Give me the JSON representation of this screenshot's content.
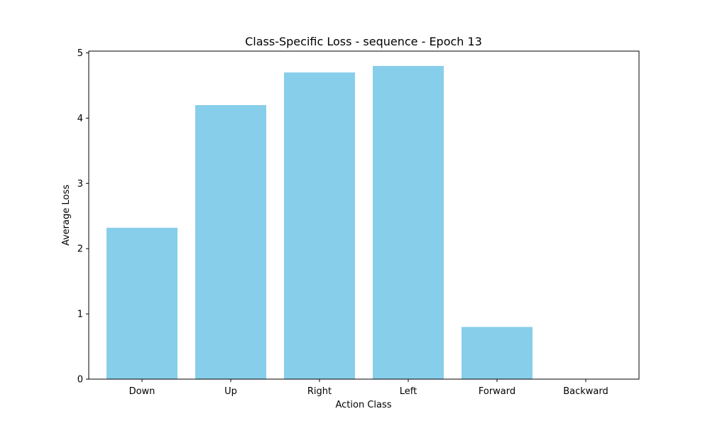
{
  "chart_data": {
    "type": "bar",
    "title": "Class-Specific Loss - sequence - Epoch 13",
    "xlabel": "Action Class",
    "ylabel": "Average Loss",
    "categories": [
      "Down",
      "Up",
      "Right",
      "Left",
      "Forward",
      "Backward"
    ],
    "values": [
      2.32,
      4.2,
      4.7,
      4.8,
      0.8,
      0.0
    ],
    "ylim": [
      0,
      5
    ],
    "yticks": [
      "0",
      "1",
      "2",
      "3",
      "4",
      "5"
    ],
    "bar_color": "#87ceeb",
    "grid": false,
    "legend": "none"
  }
}
